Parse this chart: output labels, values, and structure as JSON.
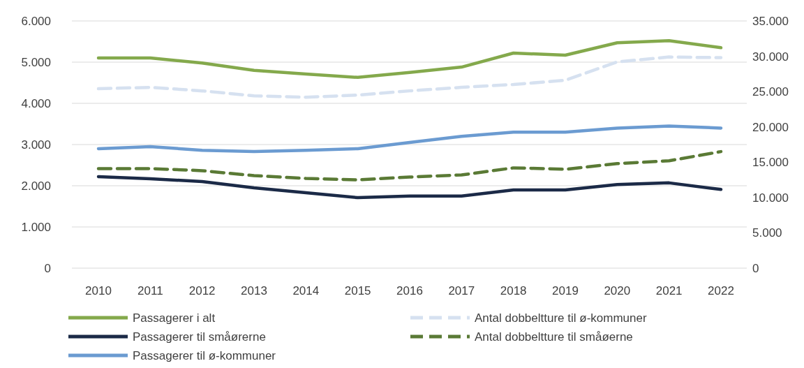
{
  "chart_data": {
    "type": "line",
    "categories": [
      "2010",
      "2011",
      "2012",
      "2013",
      "2014",
      "2015",
      "2016",
      "2017",
      "2018",
      "2019",
      "2020",
      "2021",
      "2022"
    ],
    "ylim": [
      0,
      6000
    ],
    "yticks": [
      0,
      {
        "value": 1000,
        "label": "1.000"
      },
      {
        "value": 2000,
        "label": "2.000"
      },
      {
        "value": 3000,
        "label": "3.000"
      },
      {
        "value": 4000,
        "label": "4.000"
      },
      {
        "value": 5000,
        "label": "5.000"
      },
      {
        "value": 6000,
        "label": "6.000"
      }
    ],
    "y2lim": [
      0,
      35000
    ],
    "y2ticks": [
      0,
      {
        "value": 5000,
        "label": "5.000"
      },
      {
        "value": 10000,
        "label": "10.000"
      },
      {
        "value": 15000,
        "label": "15.000"
      },
      {
        "value": 20000,
        "label": "20.000"
      },
      {
        "value": 25000,
        "label": "25.000"
      },
      {
        "value": 30000,
        "label": "30.000"
      },
      {
        "value": 35000,
        "label": "35.000"
      }
    ],
    "grid": "y",
    "legend": "bottom",
    "marker": "none",
    "series": [
      {
        "name": "Passagerer i alt",
        "color": "#84a94c",
        "line_style": "solid",
        "values": [
          5100,
          5100,
          4980,
          4800,
          4710,
          4630,
          4750,
          4880,
          5220,
          5170,
          5470,
          5520,
          5350
        ]
      },
      {
        "name": "Passagerer til småørerne",
        "color": "#1b2a47",
        "line_style": "solid",
        "values": [
          2220,
          2170,
          2100,
          1950,
          1830,
          1710,
          1750,
          1750,
          1900,
          1900,
          2030,
          2070,
          1910
        ]
      },
      {
        "name": "Passagerer til ø-kommuner",
        "color": "#6b9bd1",
        "line_style": "solid",
        "values": [
          2900,
          2950,
          2860,
          2830,
          2860,
          2900,
          3050,
          3200,
          3300,
          3300,
          3400,
          3450,
          3400
        ]
      },
      {
        "name": "Antal dobbeltture til ø-kommuner",
        "color": "#d6e1f0",
        "line_style": "dashed",
        "axis": "y2",
        "values": [
          25400,
          25600,
          25100,
          24400,
          24200,
          24500,
          25100,
          25600,
          26000,
          26600,
          29200,
          29900,
          29800
        ]
      },
      {
        "name": "Antal dobbeltture til småøerne",
        "color": "#5a7a35",
        "line_style": "dashed",
        "axis": "y2",
        "values": [
          14100,
          14100,
          13800,
          13100,
          12700,
          12500,
          12900,
          13200,
          14200,
          14000,
          14800,
          15200,
          16500
        ]
      }
    ]
  }
}
